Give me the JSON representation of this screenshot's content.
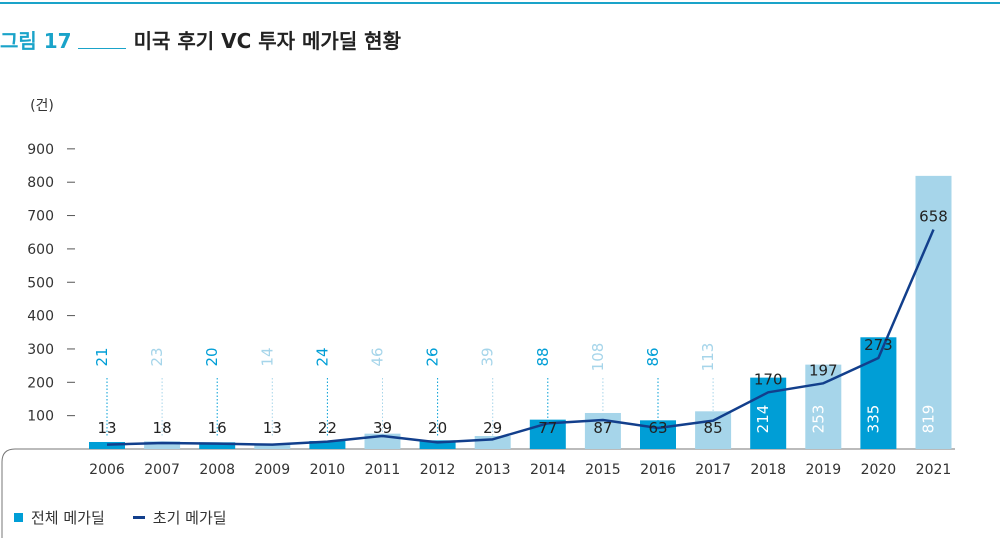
{
  "figure": {
    "label": "그림 17",
    "title": "미국 후기 VC 투자 메가딜 현황"
  },
  "chart_data": {
    "type": "bar",
    "unit": "(건)",
    "categories": [
      "2006",
      "2007",
      "2008",
      "2009",
      "2010",
      "2011",
      "2012",
      "2013",
      "2014",
      "2015",
      "2016",
      "2017",
      "2018",
      "2019",
      "2020",
      "2021"
    ],
    "ylim": [
      0,
      900
    ],
    "yticks": [
      100,
      200,
      300,
      400,
      500,
      600,
      700,
      800,
      900
    ],
    "series": [
      {
        "name": "전체 메가딜",
        "type": "bar",
        "values": [
          21,
          23,
          20,
          14,
          24,
          46,
          26,
          39,
          88,
          108,
          86,
          113,
          214,
          253,
          335,
          819
        ],
        "colors": [
          "#009ed6",
          "#a6d5ea",
          "#009ed6",
          "#a6d5ea",
          "#009ed6",
          "#a6d5ea",
          "#009ed6",
          "#a6d5ea",
          "#009ed6",
          "#a6d5ea",
          "#009ed6",
          "#a6d5ea",
          "#009ed6",
          "#a6d5ea",
          "#009ed6",
          "#a6d5ea"
        ]
      },
      {
        "name": "초기 메가딜",
        "type": "line",
        "color": "#123f8c",
        "values": [
          13,
          18,
          16,
          13,
          22,
          39,
          20,
          29,
          77,
          87,
          63,
          85,
          170,
          197,
          273,
          658
        ]
      }
    ],
    "legend": "bottom-left",
    "grid": false
  }
}
